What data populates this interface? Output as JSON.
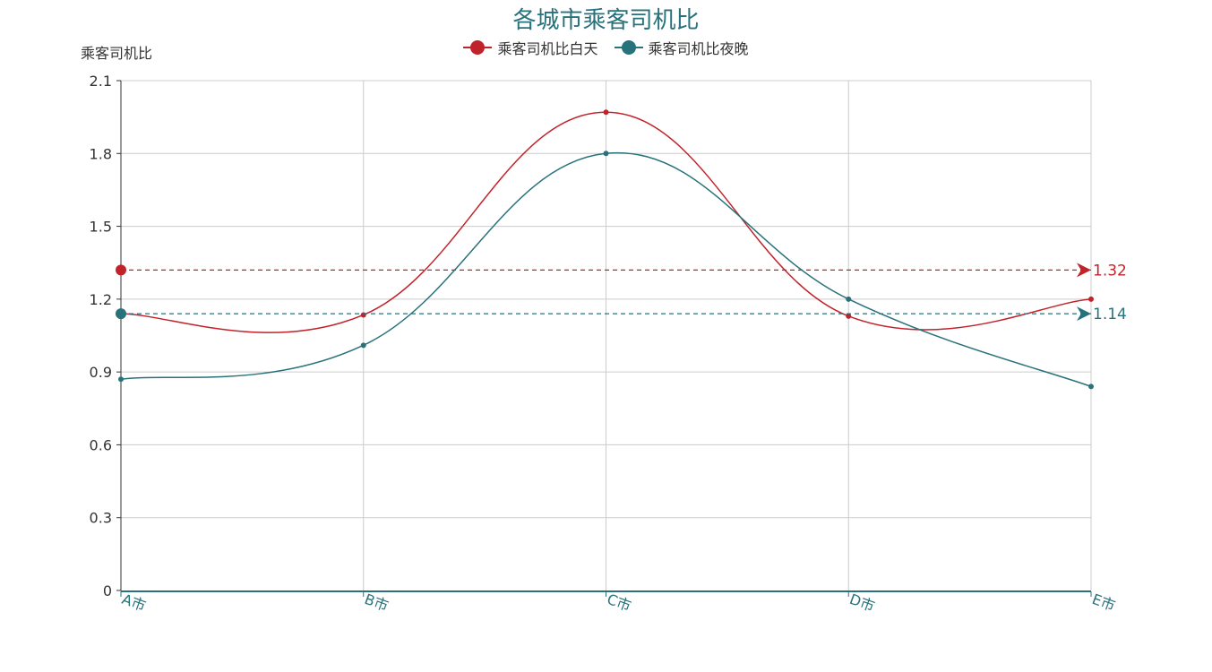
{
  "chart_data": {
    "type": "line",
    "title": "各城市乘客司机比",
    "ylabel": "乘客司机比",
    "xlabel": "",
    "categories": [
      "A市",
      "B市",
      "C市",
      "D市",
      "E市"
    ],
    "ylim": [
      0,
      2.1
    ],
    "yticks": [
      "0",
      "0.3",
      "0.6",
      "0.9",
      "1.2",
      "1.5",
      "1.8",
      "2.1"
    ],
    "grid": true,
    "legend_position": "top-center",
    "series": [
      {
        "name": "乘客司机比白天",
        "color": "#c1232b",
        "values": [
          1.14,
          1.135,
          1.97,
          1.13,
          1.2
        ],
        "average": 1.32,
        "average_label": "1.32"
      },
      {
        "name": "乘客司机比夜晚",
        "color": "#27727b",
        "values": [
          0.87,
          1.01,
          1.8,
          1.2,
          0.84
        ],
        "average": 1.14,
        "average_label": "1.14"
      }
    ]
  }
}
